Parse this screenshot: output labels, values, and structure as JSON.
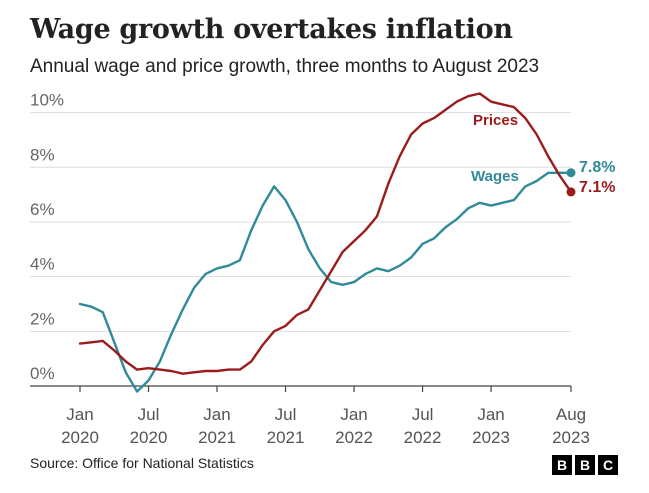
{
  "header": {
    "title": "Wage growth overtakes inflation",
    "subtitle": "Annual wage and price growth, three months to August 2023"
  },
  "footer": {
    "source": "Source: Office for National Statistics",
    "logo_letters": [
      "B",
      "B",
      "C"
    ]
  },
  "chart_data": {
    "type": "line",
    "title": "Wage growth overtakes inflation",
    "subtitle": "Annual wage and price growth, three months to August 2023",
    "xlabel": "",
    "ylabel": "",
    "ylim": [
      0,
      10.9
    ],
    "y_ticks": [
      0,
      2,
      4,
      6,
      8,
      10
    ],
    "y_tick_labels": [
      "0%",
      "2%",
      "4%",
      "6%",
      "8%",
      "10%"
    ],
    "x_ticks": [
      {
        "index": 0,
        "line1": "Jan",
        "line2": "2020"
      },
      {
        "index": 6,
        "line1": "Jul",
        "line2": "2020"
      },
      {
        "index": 12,
        "line1": "Jan",
        "line2": "2021"
      },
      {
        "index": 18,
        "line1": "Jul",
        "line2": "2021"
      },
      {
        "index": 24,
        "line1": "Jan",
        "line2": "2022"
      },
      {
        "index": 30,
        "line1": "Jul",
        "line2": "2022"
      },
      {
        "index": 36,
        "line1": "Jan",
        "line2": "2023"
      },
      {
        "index": 43,
        "line1": "Aug",
        "line2": "2023"
      }
    ],
    "x_range": [
      0,
      43
    ],
    "grid": true,
    "series": [
      {
        "name": "Wages",
        "color": "#318a9a",
        "label": "Wages",
        "end_label": "7.8%",
        "values": [
          3.0,
          2.9,
          2.7,
          1.6,
          0.5,
          -0.2,
          0.2,
          0.9,
          1.9,
          2.8,
          3.6,
          4.1,
          4.3,
          4.4,
          4.6,
          5.7,
          6.6,
          7.3,
          6.8,
          6.0,
          5.0,
          4.3,
          3.8,
          3.7,
          3.8,
          4.1,
          4.3,
          4.2,
          4.4,
          4.7,
          5.2,
          5.4,
          5.8,
          6.1,
          6.5,
          6.7,
          6.6,
          6.7,
          6.8,
          7.3,
          7.5,
          7.8,
          7.8,
          7.8
        ]
      },
      {
        "name": "Prices",
        "color": "#9b1c1c",
        "label": "Prices",
        "end_label": "7.1%",
        "values": [
          1.55,
          1.6,
          1.65,
          1.3,
          0.9,
          0.6,
          0.65,
          0.6,
          0.55,
          0.45,
          0.5,
          0.55,
          0.55,
          0.6,
          0.6,
          0.9,
          1.5,
          2.0,
          2.2,
          2.6,
          2.8,
          3.5,
          4.2,
          4.9,
          5.3,
          5.7,
          6.2,
          7.4,
          8.4,
          9.2,
          9.6,
          9.8,
          10.1,
          10.4,
          10.6,
          10.7,
          10.4,
          10.3,
          10.2,
          9.8,
          9.2,
          8.4,
          7.7,
          7.1
        ]
      }
    ]
  }
}
